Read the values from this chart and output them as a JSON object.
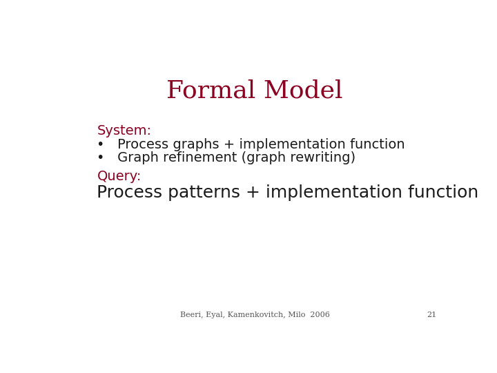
{
  "title": "Formal Model",
  "title_color": "#8B0020",
  "title_fontsize": 26,
  "background_color": "#FFFFFF",
  "heading_color": "#8B0020",
  "heading_fontsize": 14,
  "bullet_fontsize": 14,
  "bullet_color": "#1a1a1a",
  "query_line_fontsize": 18,
  "query_line_color": "#1a1a1a",
  "system_label": "System:",
  "bullet1": "Process graphs + implementation function",
  "bullet2": "Graph refinement (graph rewriting)",
  "query_label": "Query:",
  "query_line": "Process patterns + implementation function",
  "footer_text": "Beeri, Eyal, Kamenkovitch, Milo  2006",
  "footer_page": "21",
  "footer_fontsize": 8,
  "footer_color": "#555555"
}
